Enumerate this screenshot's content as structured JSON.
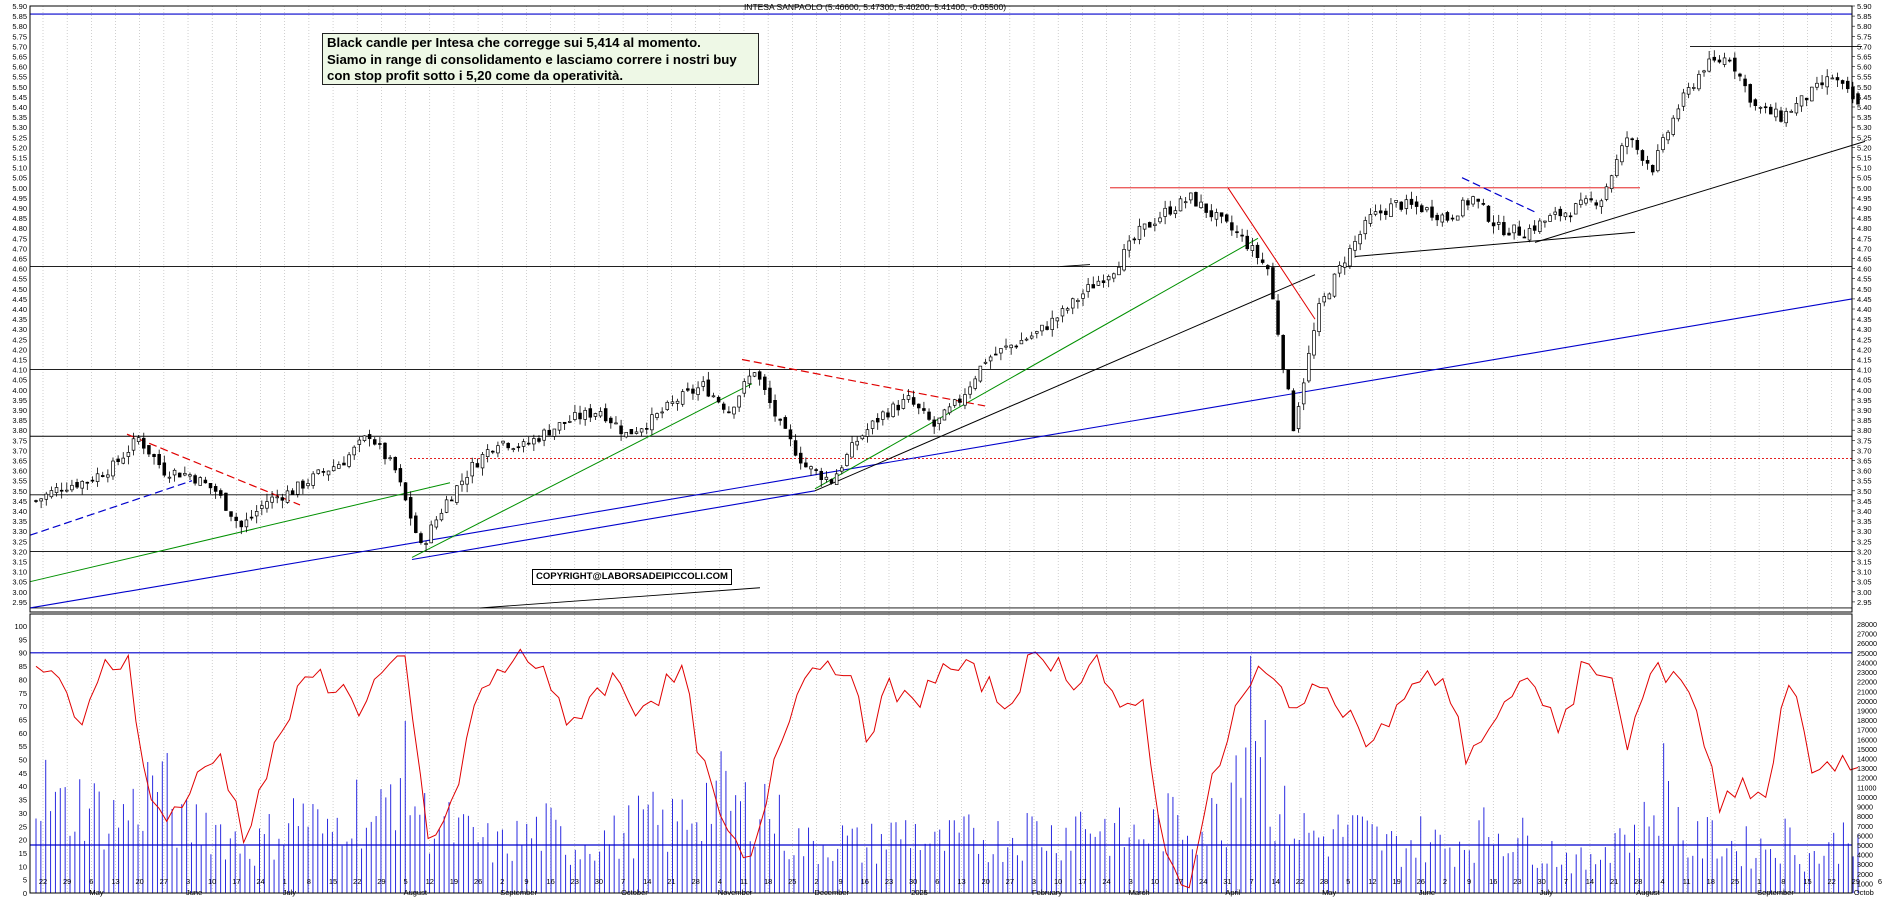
{
  "chart_title": "INTESA SANPAOLO (5.46600, 5.47300, 5.40200, 5.41400, -0.05500)",
  "annotation": {
    "line1": "Black candle per Intesa che corregge sui 5,414 al momento.",
    "line2": "Siamo in range di consolidamento e lasciamo correre i nostri buy",
    "line3": "con stop profit sotto i 5,20 come da operatività."
  },
  "copyright": "COPYRIGHT@LABORSADEIPICCOLI.COM",
  "colors": {
    "candle": "#000000",
    "resistance_red": "#e00000",
    "trend_green": "#009000",
    "trend_blue": "#0000cc",
    "volume_blue": "#2a2ae0",
    "oscillator_red": "#e00000",
    "grid": "#b0b0b0"
  },
  "x_axis": {
    "dates": [
      "22",
      "29",
      "6",
      "13",
      "20",
      "27",
      "3",
      "10",
      "17",
      "24",
      "1",
      "8",
      "15",
      "22",
      "29",
      "5",
      "12",
      "19",
      "26",
      "2",
      "9",
      "16",
      "23",
      "30",
      "7",
      "14",
      "21",
      "28",
      "4",
      "11",
      "18",
      "25",
      "2",
      "9",
      "16",
      "23",
      "30",
      "6",
      "13",
      "20",
      "27",
      "3",
      "10",
      "17",
      "24",
      "3",
      "10",
      "17",
      "24",
      "31",
      "7",
      "14",
      "22",
      "28",
      "5",
      "12",
      "19",
      "26",
      "2",
      "9",
      "16",
      "23",
      "30",
      "7",
      "14",
      "21",
      "28",
      "4",
      "11",
      "18",
      "25",
      "1",
      "8",
      "15",
      "22",
      "29",
      "6"
    ],
    "months": [
      "May",
      "June",
      "July",
      "August",
      "September",
      "October",
      "November",
      "December",
      "2025",
      "February",
      "March",
      "April",
      "May",
      "June",
      "July",
      "August",
      "September",
      "Octob"
    ]
  },
  "chart_data": [
    {
      "type": "candlestick",
      "title": "INTESA SANPAOLO (5.46600, 5.47300, 5.40200, 5.41400, -0.05500)",
      "ylim": [
        2.9,
        5.9
      ],
      "y_ticks": [
        "5.90",
        "5.85",
        "5.80",
        "5.75",
        "5.70",
        "5.65",
        "5.60",
        "5.55",
        "5.50",
        "5.45",
        "5.40",
        "5.35",
        "5.30",
        "5.25",
        "5.20",
        "5.15",
        "5.10",
        "5.05",
        "5.00",
        "4.95",
        "4.90",
        "4.85",
        "4.80",
        "4.75",
        "4.70",
        "4.65",
        "4.60",
        "4.55",
        "4.50",
        "4.45",
        "4.40",
        "4.35",
        "4.30",
        "4.25",
        "4.20",
        "4.15",
        "4.10",
        "4.05",
        "4.00",
        "3.95",
        "3.90",
        "3.85",
        "3.80",
        "3.75",
        "3.70",
        "3.65",
        "3.60",
        "3.55",
        "3.50",
        "3.45",
        "3.40",
        "3.35",
        "3.30",
        "3.25",
        "3.20",
        "3.15",
        "3.10",
        "3.05",
        "3.00",
        "2.95"
      ],
      "price_path_weekly": [
        3.45,
        3.52,
        3.55,
        3.62,
        3.76,
        3.6,
        3.58,
        3.5,
        3.32,
        3.45,
        3.5,
        3.58,
        3.65,
        3.78,
        3.6,
        3.22,
        3.45,
        3.62,
        3.75,
        3.72,
        3.8,
        3.86,
        3.9,
        3.78,
        3.85,
        3.95,
        4.02,
        3.9,
        4.1,
        3.82,
        3.62,
        3.55,
        3.75,
        3.88,
        3.95,
        3.82,
        3.95,
        4.15,
        4.22,
        4.28,
        4.38,
        4.5,
        4.6,
        4.78,
        4.88,
        4.95,
        4.85,
        4.75,
        4.6,
        3.82,
        4.4,
        4.65,
        4.85,
        4.92,
        4.9,
        4.85,
        4.95,
        4.8,
        4.78,
        4.85,
        4.9,
        4.95,
        5.25,
        5.1,
        5.4,
        5.6,
        5.65,
        5.4,
        5.35,
        5.45,
        5.55,
        5.41
      ],
      "last_candle": {
        "open": 5.466,
        "high": 5.473,
        "low": 5.402,
        "close": 5.414,
        "change": -0.055
      },
      "horizontal_levels": [
        5.86,
        5.7,
        5.0,
        4.61,
        4.1,
        3.77,
        3.66,
        3.48,
        3.2,
        2.92
      ],
      "trendlines": [
        {
          "color": "blue",
          "from": [
            "22 Apr",
            2.92
          ],
          "to": [
            "Oct",
            4.45
          ]
        },
        {
          "color": "blue",
          "from": [
            "5 Aug",
            3.16
          ],
          "to": [
            "25 Nov",
            3.5
          ]
        },
        {
          "color": "green",
          "from": [
            "22 Apr",
            3.05
          ],
          "to": [
            "15 Aug",
            3.54
          ]
        },
        {
          "color": "green",
          "from": [
            "5 Aug",
            3.17
          ],
          "to": [
            "11 Nov",
            4.03
          ]
        },
        {
          "color": "green",
          "from": [
            "25 Nov",
            3.51
          ],
          "to": [
            "24 Mar",
            4.75
          ]
        },
        {
          "color": "black",
          "from": [
            "25 Nov",
            3.5
          ],
          "to": [
            "14 Apr",
            4.57
          ]
        },
        {
          "color": "black",
          "from": [
            "5 May",
            4.66
          ],
          "to": [
            "21 Jul",
            4.78
          ]
        },
        {
          "color": "black",
          "from": [
            "30 Jun",
            4.73
          ],
          "to": [
            "22 Sep",
            5.23
          ]
        },
        {
          "color": "red",
          "from": [
            "17 Mar",
            5.0
          ],
          "to": [
            "14 Apr",
            4.35
          ]
        },
        {
          "color": "red-dashed",
          "from": [
            "13 May",
            3.78
          ],
          "to": [
            "24 Jun",
            3.43
          ]
        },
        {
          "color": "red-dashed",
          "from": [
            "4 Nov",
            4.15
          ],
          "to": [
            "30 Dec",
            3.92
          ]
        },
        {
          "color": "blue-dashed",
          "from": [
            "22 Apr",
            3.28
          ],
          "to": [
            "3 Jun",
            3.55
          ]
        },
        {
          "color": "blue-dashed",
          "from": [
            "2 Jun",
            5.05
          ],
          "to": [
            "30 Jun",
            4.88
          ]
        }
      ]
    },
    {
      "type": "line+bar",
      "ylim_left": [
        0,
        100
      ],
      "y_ticks_left": [
        "100",
        "95",
        "90",
        "85",
        "80",
        "75",
        "70",
        "65",
        "60",
        "55",
        "50",
        "45",
        "40",
        "35",
        "30",
        "25",
        "20",
        "15",
        "10",
        "5",
        "0"
      ],
      "ylim_right": [
        0,
        28000
      ],
      "y_ticks_right": [
        "28000",
        "27000",
        "26000",
        "25000",
        "24000",
        "23000",
        "22000",
        "21000",
        "20000",
        "19000",
        "18000",
        "17000",
        "16000",
        "15000",
        "14000",
        "13000",
        "12000",
        "11000",
        "10000",
        "9000",
        "8000",
        "7000",
        "6000",
        "5000",
        "4000",
        "3000",
        "2000",
        "1000"
      ],
      "oscillator_weekly": [
        80,
        82,
        60,
        85,
        88,
        32,
        30,
        42,
        52,
        22,
        45,
        68,
        82,
        78,
        70,
        82,
        85,
        20,
        30,
        70,
        82,
        88,
        86,
        60,
        74,
        80,
        70,
        75,
        82,
        45,
        20,
        10,
        50,
        78,
        87,
        86,
        60,
        76,
        70,
        82,
        84,
        80,
        70,
        85,
        88,
        80,
        88,
        65,
        72,
        12,
        5,
        40,
        68,
        82,
        76,
        70,
        80,
        66,
        55,
        70,
        78,
        82,
        52,
        62,
        72,
        80,
        60,
        82,
        86,
        58,
        82,
        80,
        70,
        30,
        40,
        35,
        80,
        47,
        50,
        42
      ],
      "volume_weekly": [
        12000,
        9000,
        10000,
        8000,
        9000,
        13000,
        7000,
        8000,
        6000,
        5000,
        7000,
        9000,
        6000,
        10000,
        7000,
        14000,
        8000,
        7000,
        6000,
        5000,
        6000,
        7000,
        5000,
        6000,
        6000,
        8000,
        7000,
        9000,
        11000,
        9000,
        10000,
        6000,
        5000,
        6000,
        5000,
        6000,
        7000,
        5000,
        6000,
        6000,
        6000,
        7000,
        6000,
        8000,
        7000,
        6000,
        7000,
        8000,
        7000,
        9000,
        26000,
        9000,
        7000,
        6000,
        7000,
        6000,
        5000,
        6000,
        5000,
        6000,
        7000,
        6000,
        5000,
        4000,
        3000,
        7000,
        6000,
        12000,
        5000,
        6000,
        5000,
        5000,
        6000,
        4000,
        5000,
        8000
      ],
      "horizontal_levels_right": [
        25000,
        5000
      ]
    }
  ]
}
